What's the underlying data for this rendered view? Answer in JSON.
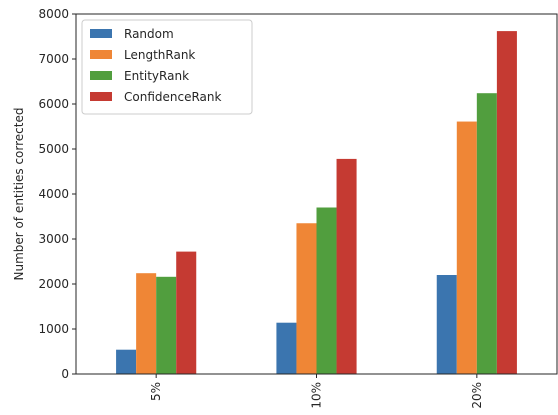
{
  "chart_data": {
    "type": "bar",
    "title": "",
    "xlabel": "",
    "ylabel": "Number of entities corrected",
    "categories": [
      "5%",
      "10%",
      "20%"
    ],
    "ylim": [
      0,
      8000
    ],
    "yticks": [
      0,
      1000,
      2000,
      3000,
      4000,
      5000,
      6000,
      7000,
      8000
    ],
    "grid": false,
    "legend_position": "top-left",
    "series": [
      {
        "name": "Random",
        "color": "#3b75af",
        "values": [
          540,
          1140,
          2200
        ]
      },
      {
        "name": "LengthRank",
        "color": "#ef8636",
        "values": [
          2240,
          3350,
          5610
        ]
      },
      {
        "name": "EntityRank",
        "color": "#519e3e",
        "values": [
          2160,
          3700,
          6240
        ]
      },
      {
        "name": "ConfidenceRank",
        "color": "#c53a32",
        "values": [
          2720,
          4780,
          7620
        ]
      }
    ]
  }
}
